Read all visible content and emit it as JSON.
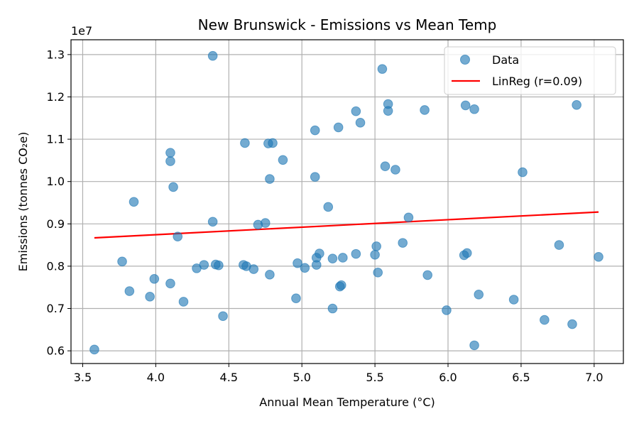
{
  "chart_data": {
    "type": "scatter",
    "title": "New Brunswick - Emissions vs Mean Temp",
    "xlabel": "Annual Mean Temperature (°C)",
    "ylabel": "Emissions (tonnes CO₂e)",
    "offset_label": "1e7",
    "xlim": [
      3.42,
      7.2
    ],
    "ylim": [
      5.7,
      13.35
    ],
    "x_ticks": [
      3.5,
      4.0,
      4.5,
      5.0,
      5.5,
      6.0,
      6.5,
      7.0
    ],
    "x_tick_labels": [
      "3.5",
      "4.0",
      "4.5",
      "5.0",
      "5.5",
      "6.0",
      "6.5",
      "7.0"
    ],
    "y_ticks": [
      6,
      7,
      8,
      9,
      10,
      11,
      12,
      13
    ],
    "y_tick_labels": [
      "0.6",
      "0.7",
      "0.8",
      "0.9",
      "1.0",
      "1.1",
      "1.2",
      "1.3"
    ],
    "grid": true,
    "legend_position": "top-right",
    "point_color": "#1f77b4",
    "line_color": "#ff0000",
    "series": [
      {
        "name": "Data",
        "kind": "scatter",
        "points": [
          [
            3.58,
            6.03
          ],
          [
            3.77,
            8.11
          ],
          [
            3.82,
            7.41
          ],
          [
            3.85,
            9.52
          ],
          [
            3.96,
            7.28
          ],
          [
            3.99,
            7.7
          ],
          [
            4.1,
            10.68
          ],
          [
            4.1,
            10.48
          ],
          [
            4.1,
            7.59
          ],
          [
            4.12,
            9.87
          ],
          [
            4.15,
            8.7
          ],
          [
            4.19,
            7.16
          ],
          [
            4.28,
            7.95
          ],
          [
            4.33,
            8.03
          ],
          [
            4.39,
            12.97
          ],
          [
            4.39,
            9.05
          ],
          [
            4.41,
            8.04
          ],
          [
            4.43,
            8.02
          ],
          [
            4.46,
            6.82
          ],
          [
            4.6,
            8.03
          ],
          [
            4.61,
            10.91
          ],
          [
            4.62,
            8.0
          ],
          [
            4.67,
            7.93
          ],
          [
            4.7,
            8.98
          ],
          [
            4.75,
            9.02
          ],
          [
            4.77,
            10.9
          ],
          [
            4.78,
            10.06
          ],
          [
            4.78,
            7.8
          ],
          [
            4.8,
            10.91
          ],
          [
            4.87,
            10.51
          ],
          [
            4.96,
            7.24
          ],
          [
            4.97,
            8.07
          ],
          [
            5.02,
            7.96
          ],
          [
            5.09,
            11.21
          ],
          [
            5.09,
            10.11
          ],
          [
            5.1,
            8.2
          ],
          [
            5.1,
            8.03
          ],
          [
            5.12,
            8.3
          ],
          [
            5.18,
            9.4
          ],
          [
            5.21,
            8.18
          ],
          [
            5.21,
            7.0
          ],
          [
            5.25,
            11.28
          ],
          [
            5.26,
            7.52
          ],
          [
            5.27,
            7.55
          ],
          [
            5.28,
            8.2
          ],
          [
            5.37,
            11.66
          ],
          [
            5.37,
            8.29
          ],
          [
            5.4,
            11.39
          ],
          [
            5.5,
            8.27
          ],
          [
            5.51,
            8.47
          ],
          [
            5.52,
            7.85
          ],
          [
            5.55,
            12.66
          ],
          [
            5.57,
            10.36
          ],
          [
            5.59,
            11.83
          ],
          [
            5.59,
            11.67
          ],
          [
            5.64,
            10.28
          ],
          [
            5.69,
            8.55
          ],
          [
            5.73,
            9.15
          ],
          [
            5.84,
            11.69
          ],
          [
            5.86,
            7.79
          ],
          [
            5.99,
            6.96
          ],
          [
            6.11,
            8.26
          ],
          [
            6.12,
            11.8
          ],
          [
            6.13,
            8.31
          ],
          [
            6.18,
            11.71
          ],
          [
            6.18,
            6.13
          ],
          [
            6.21,
            7.33
          ],
          [
            6.45,
            7.21
          ],
          [
            6.51,
            10.22
          ],
          [
            6.66,
            6.73
          ],
          [
            6.76,
            8.5
          ],
          [
            6.85,
            6.63
          ],
          [
            6.88,
            11.81
          ],
          [
            7.03,
            8.22
          ]
        ]
      },
      {
        "name": "LinReg (r=0.09)",
        "kind": "line",
        "points": [
          [
            3.58,
            8.67
          ],
          [
            7.03,
            9.28
          ]
        ]
      }
    ]
  }
}
